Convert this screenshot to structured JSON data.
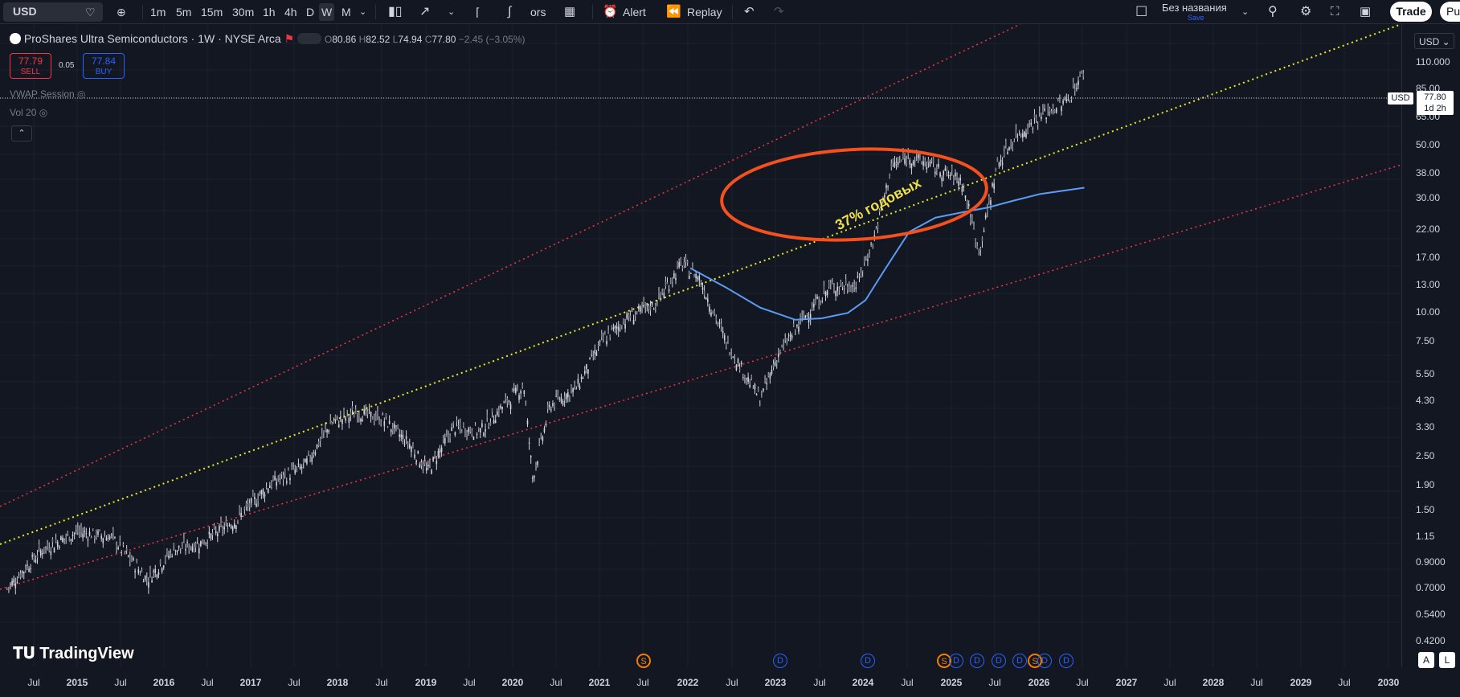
{
  "toolbar": {
    "symbol": "USD",
    "timeframes": [
      "1m",
      "5m",
      "15m",
      "30m",
      "1h",
      "4h",
      "D",
      "W",
      "M"
    ],
    "active_timeframe": "W",
    "indicators_label": "ors",
    "alert_label": "Alert",
    "replay_label": "Replay",
    "layout_name": "Без названия",
    "save_label": "Save",
    "trade_label": "Trade",
    "publish_label": "Pu"
  },
  "legend": {
    "title": "ProShares Ultra Semiconductors · 1W · NYSE Arca",
    "open_label": "O",
    "open": "80.86",
    "high_label": "H",
    "high": "82.52",
    "low_label": "L",
    "low": "74.94",
    "close_label": "C",
    "close": "77.80",
    "change": "−2.45 (−3.05%)"
  },
  "order": {
    "sell_price": "77.79",
    "sell_label": "SELL",
    "spread": "0.05",
    "buy_price": "77.84",
    "buy_label": "BUY"
  },
  "indicators": [
    "VWAP Session",
    "Vol 20"
  ],
  "price_axis": {
    "currency": "USD",
    "last_price": "77.80",
    "countdown": "1d 2h",
    "ticks": [
      "110.000",
      "85.00",
      "65.00",
      "50.00",
      "38.00",
      "30.00",
      "22.00",
      "17.00",
      "13.00",
      "10.00",
      "7.50",
      "5.50",
      "4.30",
      "3.30",
      "2.50",
      "1.90",
      "1.50",
      "1.15",
      "0.9000",
      "0.7000",
      "0.5400",
      "0.4200"
    ]
  },
  "time_axis": {
    "labels": [
      "Jul",
      "2015",
      "Jul",
      "2016",
      "Jul",
      "2017",
      "Jul",
      "2018",
      "Jul",
      "2019",
      "Jul",
      "2020",
      "Jul",
      "2021",
      "Jul",
      "2022",
      "Jul",
      "2023",
      "Jul",
      "2024",
      "Jul",
      "2025",
      "Jul",
      "2026",
      "Jul",
      "2027",
      "Jul",
      "2028",
      "Jul",
      "2029",
      "Jul",
      "2030"
    ]
  },
  "events": [
    "S",
    "D",
    "D",
    "S",
    "D",
    "D",
    "D",
    "D",
    "S",
    "D",
    "D"
  ],
  "annotation": "37% годовых",
  "branding": "TradingView",
  "scale_buttons": [
    "A",
    "L"
  ],
  "colors": {
    "background": "#131722",
    "upper_channel": "#f23645",
    "mid_trend": "#e8e82a",
    "ma_line": "#5b9cf6",
    "highlight": "#f4511e"
  },
  "chart_data": {
    "type": "line",
    "scale": "log",
    "ylim": [
      0.42,
      110
    ],
    "x": [
      2014.2,
      2014.6,
      2015.0,
      2015.4,
      2015.8,
      2016.1,
      2016.4,
      2016.8,
      2017.2,
      2017.6,
      2017.9,
      2018.2,
      2018.5,
      2018.8,
      2019.0,
      2019.3,
      2019.6,
      2019.9,
      2020.1,
      2020.2,
      2020.4,
      2020.7,
      2021.0,
      2021.3,
      2021.6,
      2021.9,
      2022.1,
      2022.4,
      2022.6,
      2022.8,
      2023.0,
      2023.3,
      2023.6,
      2023.9,
      2024.1,
      2024.3,
      2024.5,
      2024.7,
      2024.9,
      2025.1,
      2025.3,
      2025.5,
      2025.7,
      2026.0,
      2026.3,
      2026.5
    ],
    "close": [
      0.55,
      0.8,
      0.95,
      0.9,
      0.6,
      0.8,
      0.85,
      1.05,
      1.5,
      1.8,
      2.7,
      3.0,
      2.8,
      2.2,
      1.7,
      2.6,
      2.5,
      3.3,
      3.9,
      1.6,
      3.2,
      3.8,
      6.0,
      7.5,
      8.5,
      12.5,
      11.0,
      6.0,
      4.5,
      3.4,
      5.2,
      7.5,
      10.0,
      10.2,
      16,
      32,
      35,
      33,
      30,
      28,
      14,
      32,
      42,
      52,
      60,
      80
    ],
    "moving_average": {
      "x": [
        2022.0,
        2022.4,
        2022.8,
        2023.2,
        2023.5,
        2023.8,
        2024.0,
        2024.2,
        2024.5,
        2024.8,
        2025.1,
        2025.4,
        2025.7,
        2026.0,
        2026.5
      ],
      "values": [
        12.0,
        10.0,
        8.2,
        7.3,
        7.4,
        7.8,
        8.8,
        11.5,
        17.0,
        19.5,
        20.5,
        21.5,
        23.0,
        24.5,
        26.0
      ]
    }
  }
}
